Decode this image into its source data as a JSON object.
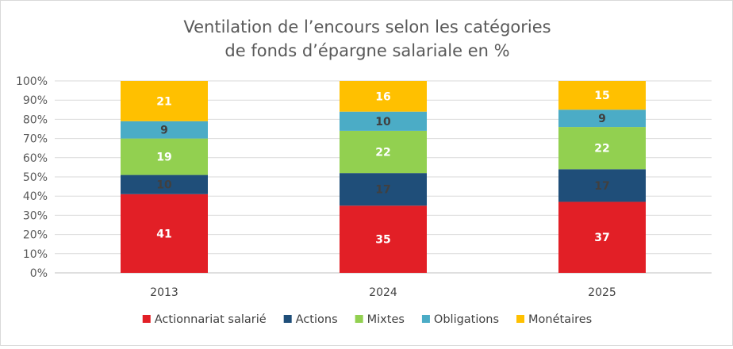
{
  "chart_data": {
    "type": "bar",
    "stacked": true,
    "title_lines": [
      "Ventilation de l’encours selon les catégories",
      "de fonds d’épargne salariale en %"
    ],
    "categories": [
      "2013",
      "2024",
      "2025"
    ],
    "yticks": [
      "0%",
      "10%",
      "20%",
      "30%",
      "40%",
      "50%",
      "60%",
      "70%",
      "80%",
      "90%",
      "100%"
    ],
    "ylim": [
      0,
      100
    ],
    "grid": true,
    "legend_position": "bottom",
    "series": [
      {
        "name": "Actionnariat salarié",
        "color": "#e21f26",
        "label_color": "#ffffff",
        "values": [
          41,
          35,
          37
        ]
      },
      {
        "name": "Actions",
        "color": "#1f4e79",
        "label_color": "#404040",
        "values": [
          10,
          17,
          17
        ]
      },
      {
        "name": "Mixtes",
        "color": "#92d050",
        "label_color": "#ffffff",
        "values": [
          19,
          22,
          22
        ]
      },
      {
        "name": "Obligations",
        "color": "#4bacc6",
        "label_color": "#404040",
        "values": [
          9,
          10,
          9
        ]
      },
      {
        "name": "Monétaires",
        "color": "#ffc000",
        "label_color": "#ffffff",
        "values": [
          21,
          16,
          15
        ]
      }
    ]
  }
}
